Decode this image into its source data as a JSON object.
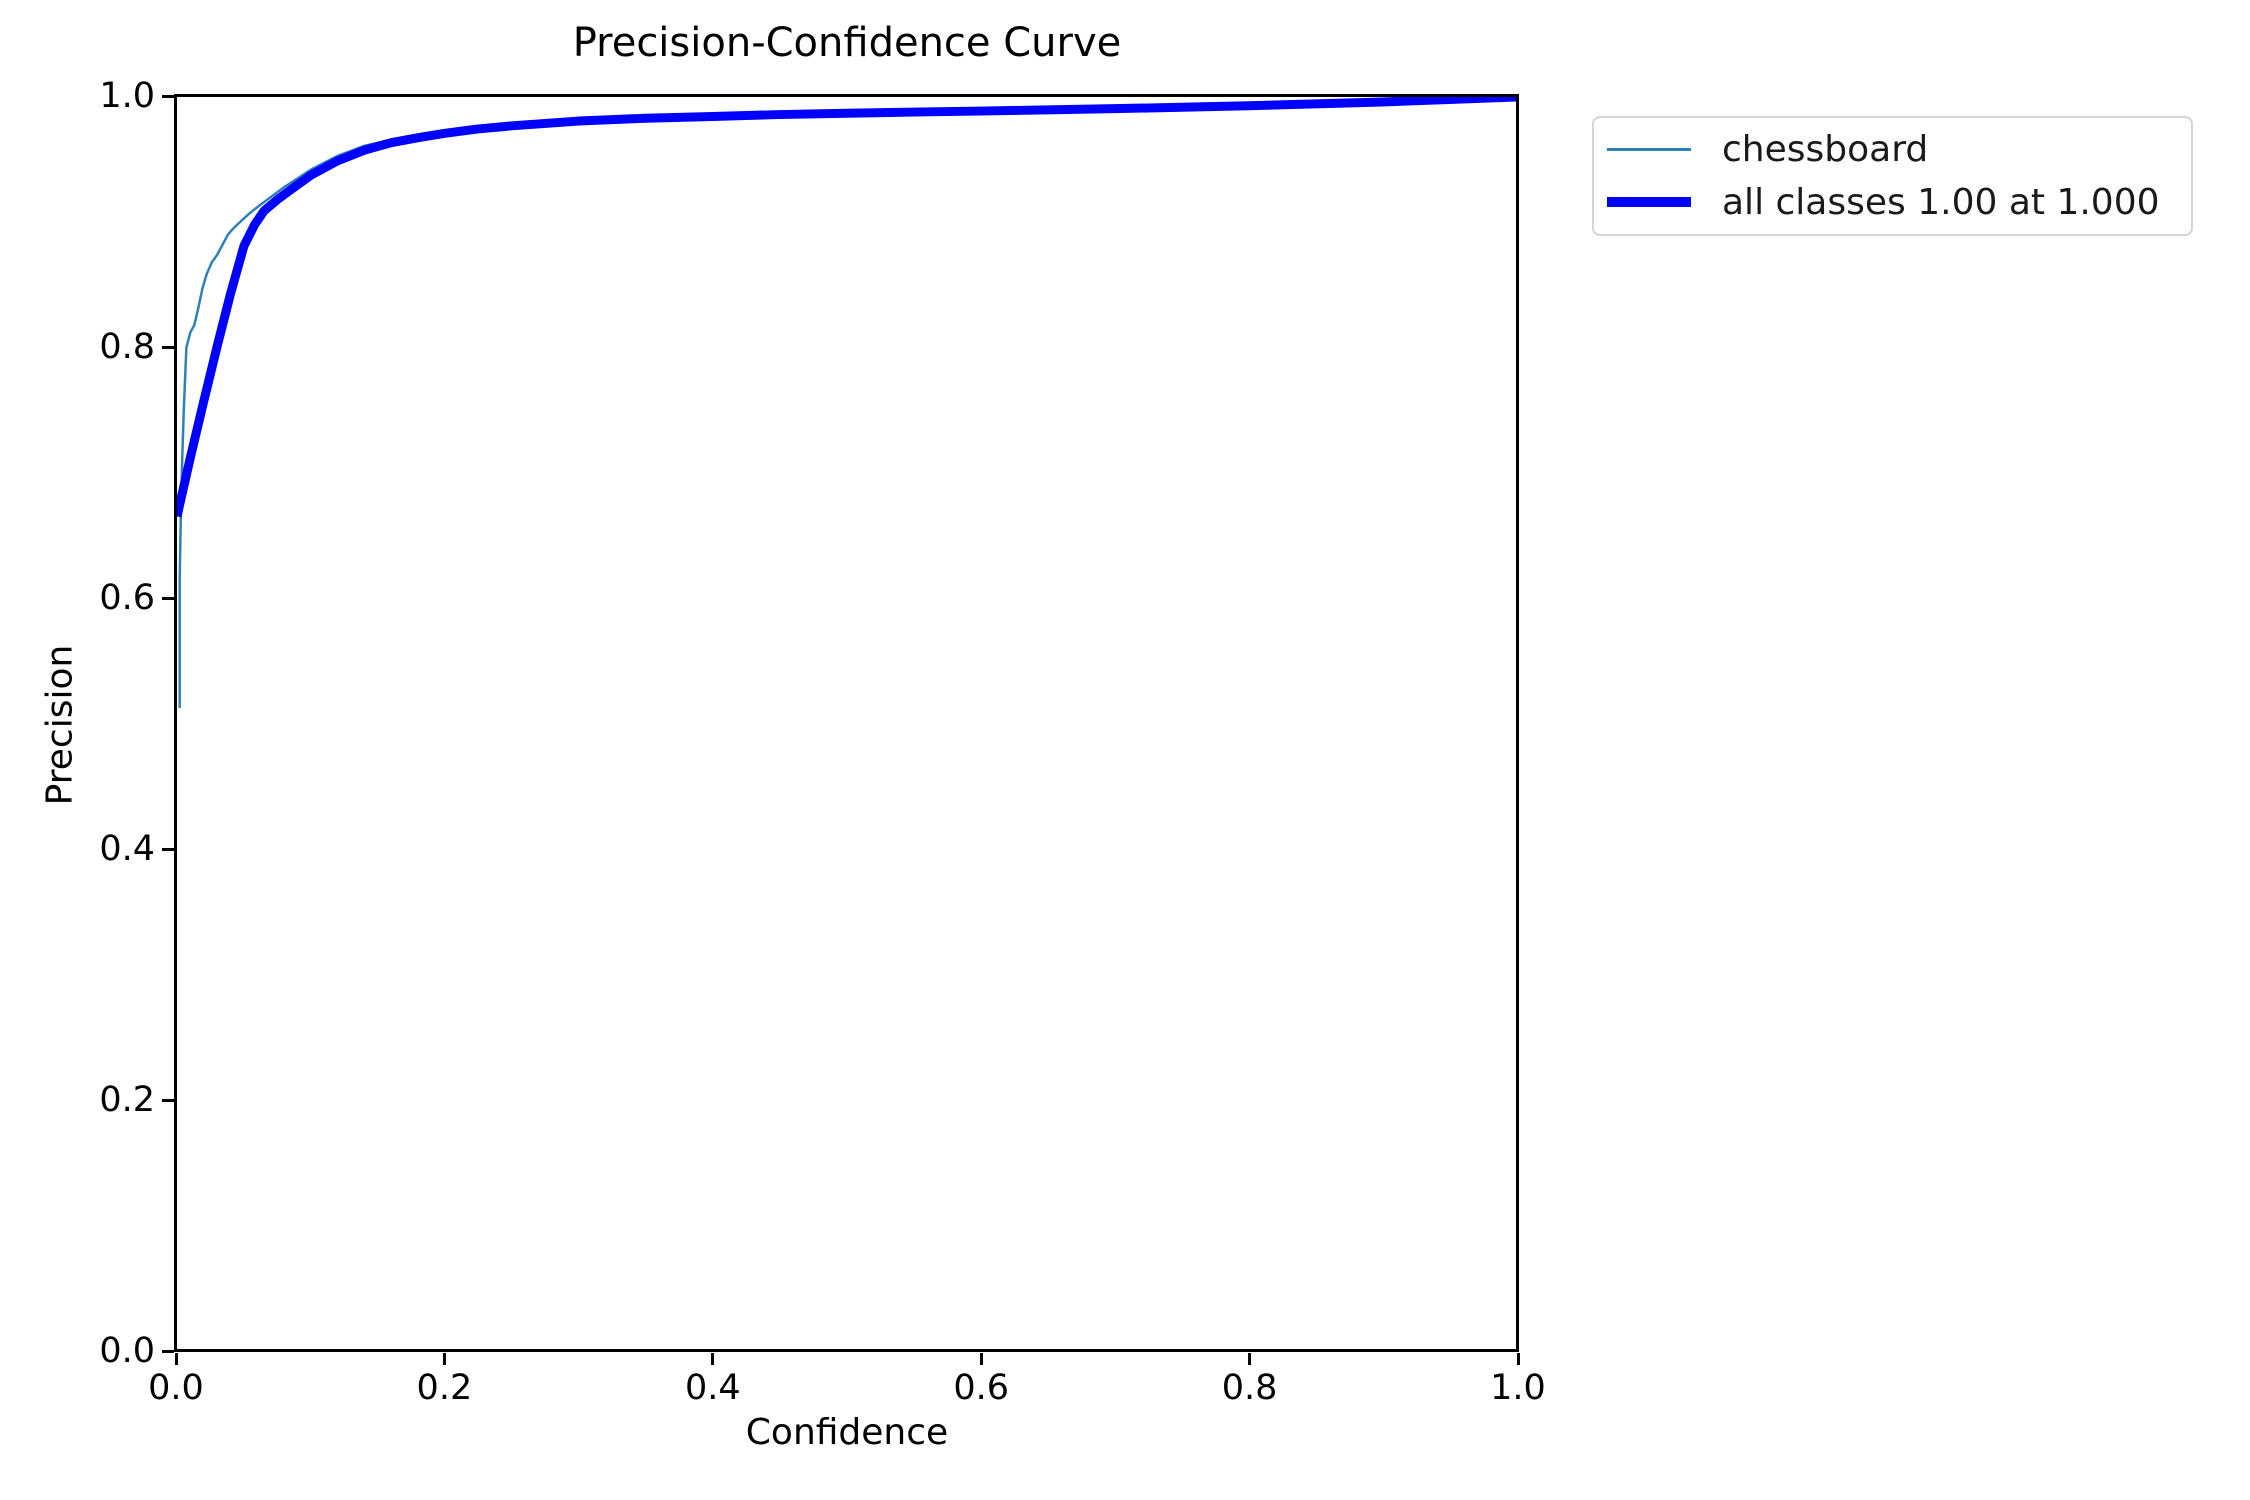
{
  "title": "Precision-Confidence Curve",
  "axes": {
    "xlabel": "Confidence",
    "ylabel": "Precision",
    "x_ticks": [
      "0.0",
      "0.2",
      "0.4",
      "0.6",
      "0.8",
      "1.0"
    ],
    "y_ticks": [
      "1.0",
      "0.8",
      "0.6",
      "0.4",
      "0.2",
      "0.0"
    ]
  },
  "legend": {
    "items": [
      {
        "label": "chessboard",
        "color": "#2e80b9",
        "style": "thin"
      },
      {
        "label": "all classes 1.00 at 1.000",
        "color": "#0000ff",
        "style": "thick"
      }
    ]
  },
  "chart_data": {
    "type": "line",
    "title": "Precision-Confidence Curve",
    "xlabel": "Confidence",
    "ylabel": "Precision",
    "xlim": [
      0.0,
      1.0
    ],
    "ylim": [
      0.0,
      1.0
    ],
    "grid": false,
    "legend_position": "outside-upper-right",
    "series": [
      {
        "name": "chessboard",
        "color": "#2e80b9",
        "linewidth": 2.5,
        "data_name": "chessboard-line",
        "points": [
          [
            0.002,
            0.512
          ],
          [
            0.002,
            0.615
          ],
          [
            0.003,
            0.673
          ],
          [
            0.004,
            0.715
          ],
          [
            0.005,
            0.748
          ],
          [
            0.007,
            0.8
          ],
          [
            0.01,
            0.812
          ],
          [
            0.013,
            0.818
          ],
          [
            0.016,
            0.832
          ],
          [
            0.019,
            0.847
          ],
          [
            0.022,
            0.858
          ],
          [
            0.026,
            0.868
          ],
          [
            0.03,
            0.874
          ],
          [
            0.034,
            0.882
          ],
          [
            0.038,
            0.89
          ],
          [
            0.042,
            0.895
          ],
          [
            0.048,
            0.901
          ],
          [
            0.054,
            0.907
          ],
          [
            0.06,
            0.912
          ],
          [
            0.07,
            0.92
          ],
          [
            0.08,
            0.928
          ],
          [
            0.09,
            0.935
          ],
          [
            0.1,
            0.942
          ],
          [
            0.12,
            0.953
          ],
          [
            0.14,
            0.961
          ],
          [
            0.16,
            0.966
          ],
          [
            0.18,
            0.97
          ],
          [
            0.2,
            0.973
          ],
          [
            0.225,
            0.9765
          ],
          [
            0.25,
            0.979
          ],
          [
            0.3,
            0.9825
          ],
          [
            0.35,
            0.9845
          ],
          [
            0.4,
            0.986
          ],
          [
            0.45,
            0.9872
          ],
          [
            0.5,
            0.988
          ],
          [
            0.55,
            0.9888
          ],
          [
            0.6,
            0.9896
          ],
          [
            0.65,
            0.9905
          ],
          [
            0.7,
            0.9915
          ],
          [
            0.75,
            0.9928
          ],
          [
            0.8,
            0.994
          ],
          [
            0.85,
            0.9955
          ],
          [
            0.9,
            0.997
          ],
          [
            0.95,
            0.9985
          ],
          [
            1.0,
            1.0
          ]
        ]
      },
      {
        "name": "all classes 1.00 at 1.000",
        "color": "#0000ff",
        "linewidth": 9,
        "data_name": "all-classes-line",
        "points": [
          [
            0.0,
            0.665
          ],
          [
            0.01,
            0.712
          ],
          [
            0.02,
            0.757
          ],
          [
            0.03,
            0.801
          ],
          [
            0.04,
            0.843
          ],
          [
            0.05,
            0.881
          ],
          [
            0.058,
            0.898
          ],
          [
            0.065,
            0.909
          ],
          [
            0.075,
            0.918
          ],
          [
            0.085,
            0.926
          ],
          [
            0.1,
            0.9375
          ],
          [
            0.12,
            0.949
          ],
          [
            0.14,
            0.9575
          ],
          [
            0.16,
            0.9635
          ],
          [
            0.18,
            0.9675
          ],
          [
            0.2,
            0.971
          ],
          [
            0.225,
            0.9745
          ],
          [
            0.25,
            0.977
          ],
          [
            0.3,
            0.9808
          ],
          [
            0.35,
            0.983
          ],
          [
            0.4,
            0.9845
          ],
          [
            0.45,
            0.986
          ],
          [
            0.5,
            0.987
          ],
          [
            0.55,
            0.988
          ],
          [
            0.6,
            0.9888
          ],
          [
            0.65,
            0.9897
          ],
          [
            0.7,
            0.9907
          ],
          [
            0.75,
            0.9918
          ],
          [
            0.8,
            0.993
          ],
          [
            0.85,
            0.9945
          ],
          [
            0.9,
            0.996
          ],
          [
            0.95,
            0.998
          ],
          [
            1.0,
            1.0
          ]
        ]
      }
    ]
  }
}
